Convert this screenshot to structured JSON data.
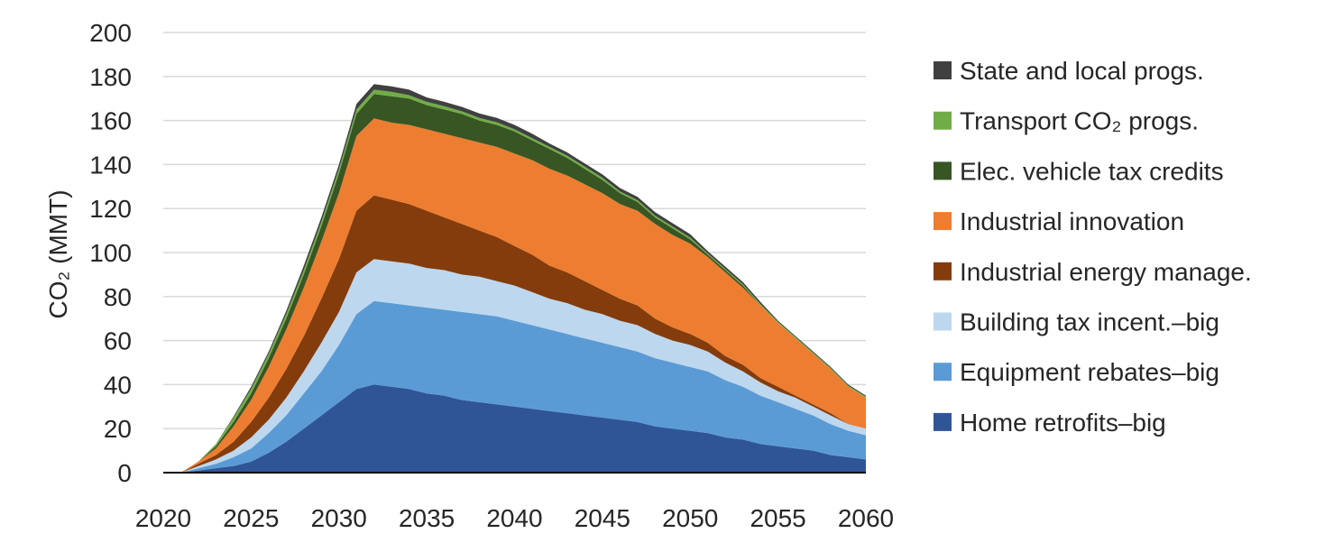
{
  "chart_data": {
    "type": "area",
    "stacked": true,
    "ylabel": "CO₂ (MMT)",
    "xlabel": "",
    "xlim": [
      2020,
      2060
    ],
    "ylim": [
      0,
      200
    ],
    "xticks": [
      "2020",
      "2025",
      "2030",
      "2035",
      "2040",
      "2045",
      "2050",
      "2055",
      "2060"
    ],
    "yticks": [
      "0",
      "20",
      "40",
      "60",
      "80",
      "100",
      "120",
      "140",
      "160",
      "180",
      "200"
    ],
    "grid": "horizontal",
    "legend": "right",
    "x": [
      2020,
      2021,
      2022,
      2023,
      2024,
      2025,
      2026,
      2027,
      2028,
      2029,
      2030,
      2031,
      2032,
      2033,
      2034,
      2035,
      2036,
      2037,
      2038,
      2039,
      2040,
      2041,
      2042,
      2043,
      2044,
      2045,
      2046,
      2047,
      2048,
      2049,
      2050,
      2051,
      2052,
      2053,
      2054,
      2055,
      2056,
      2057,
      2058,
      2059,
      2060
    ],
    "series": [
      {
        "name": "Home retrofits–big",
        "color": "#2F5597",
        "values": [
          0,
          0,
          1,
          2,
          3,
          5,
          9,
          14,
          20,
          26,
          32,
          38,
          40,
          39,
          38,
          36,
          35,
          33,
          32,
          31,
          30,
          29,
          28,
          27,
          26,
          25,
          24,
          23,
          21,
          20,
          19,
          18,
          16,
          15,
          13,
          12,
          11,
          10,
          8,
          7,
          6
        ]
      },
      {
        "name": "Equipment rebates–big",
        "color": "#5B9BD5",
        "values": [
          0,
          0,
          1,
          2,
          4,
          6,
          9,
          12,
          16,
          20,
          26,
          34,
          38,
          38,
          38,
          39,
          39,
          40,
          40,
          40,
          39,
          38,
          37,
          36,
          35,
          34,
          33,
          32,
          31,
          30,
          29,
          28,
          26,
          24,
          22,
          20,
          18,
          16,
          14,
          12,
          11
        ]
      },
      {
        "name": "Building tax incent.–big",
        "color": "#BDD7EE",
        "values": [
          0,
          0,
          1,
          2,
          3,
          5,
          6,
          8,
          10,
          13,
          15,
          19,
          19,
          19,
          19,
          18,
          18,
          17,
          17,
          16,
          16,
          15,
          14,
          14,
          13,
          13,
          12,
          12,
          11,
          10,
          10,
          9,
          8,
          7,
          6,
          5,
          5,
          4,
          4,
          3,
          3
        ]
      },
      {
        "name": "Industrial energy manage.",
        "color": "#843C0C",
        "values": [
          0,
          0,
          1,
          2,
          4,
          7,
          10,
          13,
          16,
          20,
          24,
          28,
          29,
          28,
          27,
          26,
          24,
          23,
          21,
          20,
          18,
          17,
          15,
          14,
          13,
          11,
          10,
          9,
          7,
          6,
          5,
          4,
          3,
          3,
          2,
          2,
          1,
          1,
          1,
          0,
          0
        ]
      },
      {
        "name": "Industrial innovation",
        "color": "#ED7D31",
        "values": [
          0,
          0,
          1,
          3,
          7,
          10,
          14,
          18,
          22,
          26,
          30,
          34,
          35,
          35,
          36,
          37,
          38,
          39,
          40,
          41,
          42,
          43,
          44,
          44,
          44,
          44,
          43,
          43,
          43,
          42,
          41,
          39,
          38,
          35,
          33,
          29,
          26,
          23,
          20,
          17,
          14
        ]
      },
      {
        "name": "Elec. vehicle tax credits",
        "color": "#375623",
        "values": [
          0,
          0,
          0,
          1,
          2,
          3,
          4,
          5,
          6,
          7,
          9,
          10,
          11,
          12,
          12,
          11,
          11,
          11,
          10,
          10,
          10,
          9,
          9,
          8,
          7,
          6,
          5,
          4,
          3,
          3,
          2,
          1,
          1,
          1,
          0,
          0,
          0,
          0,
          0,
          0,
          0
        ]
      },
      {
        "name": "Transport CO₂ progs.",
        "color": "#70AD47",
        "values": [
          0,
          0,
          0,
          1,
          2,
          2,
          2,
          2,
          2,
          2,
          2,
          2,
          2,
          2,
          1.5,
          1.5,
          1.5,
          1.2,
          1.2,
          1.2,
          1,
          1,
          1,
          1,
          1,
          1,
          0.8,
          0.8,
          0.8,
          0.8,
          0.8,
          0.6,
          0.6,
          0.6,
          0.6,
          0.5,
          0.5,
          0.5,
          0.5,
          0.5,
          0.5
        ]
      },
      {
        "name": "State and local progs.",
        "color": "#404040",
        "values": [
          0,
          0,
          0,
          0,
          0.5,
          1,
          1,
          1.5,
          2,
          2,
          2,
          2.5,
          2.5,
          2.5,
          2.5,
          2,
          2,
          2,
          2,
          2,
          2,
          2,
          1.5,
          1.5,
          1.5,
          1.5,
          1.5,
          1.5,
          1.5,
          1.5,
          1.5,
          1,
          1,
          1,
          1,
          0.5,
          0.5,
          0.5,
          0.5,
          0.5,
          0.5
        ]
      }
    ]
  }
}
